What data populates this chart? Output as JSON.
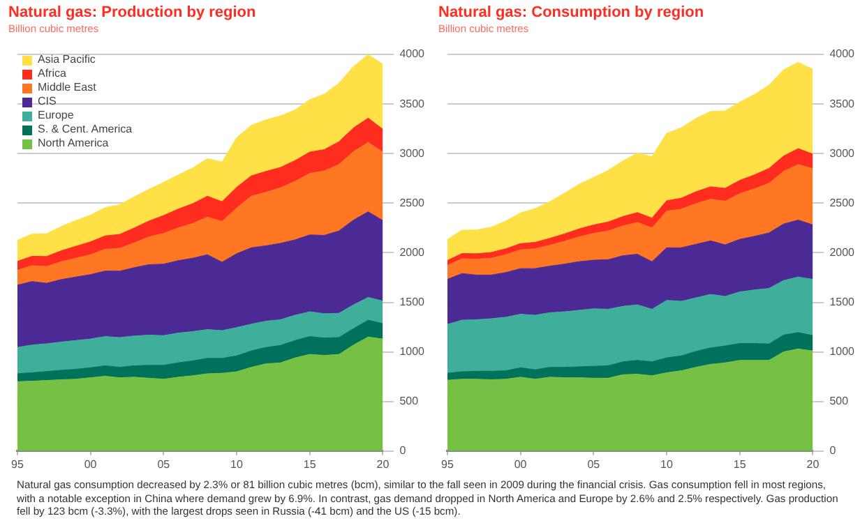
{
  "chart_data": [
    {
      "type": "area",
      "title": "Natural gas: Production by region",
      "subtitle": "Billion cubic metres",
      "stacked": true,
      "legend": "top left",
      "grid": "y",
      "x": [
        1995,
        1996,
        1997,
        1998,
        1999,
        2000,
        2001,
        2002,
        2003,
        2004,
        2005,
        2006,
        2007,
        2008,
        2009,
        2010,
        2011,
        2012,
        2013,
        2014,
        2015,
        2016,
        2017,
        2018,
        2019,
        2020
      ],
      "xlim": [
        1995,
        2020
      ],
      "xticks": [
        {
          "value": 1995,
          "label": "95"
        },
        {
          "value": 2000,
          "label": "00"
        },
        {
          "value": 2005,
          "label": "05"
        },
        {
          "value": 2010,
          "label": "10"
        },
        {
          "value": 2015,
          "label": "15"
        },
        {
          "value": 2020,
          "label": "20"
        }
      ],
      "ylim": [
        0,
        4000
      ],
      "yticks": [
        0,
        500,
        1000,
        1500,
        2000,
        2500,
        3000,
        3500,
        4000
      ],
      "annotations": [
        "Natural gas consumption decreased by 2.3% or 81 billion cubic metres (bcm), similar to the fall seen in 2009 during the financial crisis. Gas consumption fell in most regions, with a notable exception in China where demand grew by 6.9%. In contrast, gas demand dropped in North America and Europe by 2.6% and 2.5% respectively. Gas production fell by 123 bcm (-3.3%), with the largest drops seen in Russia (-41 bcm) and the US (-15 bcm)."
      ],
      "series": [
        {
          "name": "North America",
          "color": "#76c043",
          "values": [
            700,
            705,
            712,
            720,
            725,
            740,
            755,
            740,
            745,
            735,
            725,
            745,
            760,
            780,
            785,
            800,
            845,
            880,
            890,
            940,
            975,
            965,
            975,
            1070,
            1150,
            1130
          ]
        },
        {
          "name": "S. & Cent. America",
          "color": "#00715a",
          "values": [
            80,
            85,
            90,
            95,
            100,
            100,
            105,
            105,
            115,
            130,
            140,
            145,
            150,
            155,
            150,
            160,
            165,
            165,
            175,
            175,
            180,
            175,
            170,
            165,
            170,
            155
          ]
        },
        {
          "name": "Europe",
          "color": "#3fae9a",
          "values": [
            265,
            280,
            280,
            285,
            290,
            290,
            295,
            300,
            300,
            305,
            300,
            300,
            295,
            290,
            280,
            285,
            270,
            265,
            260,
            255,
            250,
            245,
            245,
            240,
            230,
            228
          ]
        },
        {
          "name": "CIS",
          "color": "#4b2a96",
          "values": [
            628,
            640,
            610,
            630,
            640,
            650,
            660,
            670,
            690,
            710,
            720,
            730,
            740,
            755,
            690,
            745,
            770,
            760,
            770,
            760,
            775,
            790,
            830,
            855,
            863,
            812
          ]
        },
        {
          "name": "Middle East",
          "color": "#ff7722",
          "values": [
            150,
            160,
            170,
            180,
            190,
            200,
            220,
            230,
            250,
            280,
            310,
            330,
            350,
            380,
            410,
            460,
            520,
            540,
            560,
            590,
            620,
            650,
            670,
            690,
            700,
            690
          ]
        },
        {
          "name": "Africa",
          "color": "#ff2d20",
          "values": [
            90,
            95,
            100,
            110,
            120,
            130,
            135,
            140,
            150,
            160,
            180,
            190,
            200,
            210,
            200,
            210,
            205,
            210,
            205,
            210,
            215,
            215,
            230,
            240,
            245,
            230
          ]
        },
        {
          "name": "Asia Pacific",
          "color": "#ffe047",
          "values": [
            212,
            225,
            230,
            245,
            260,
            270,
            285,
            300,
            315,
            320,
            335,
            345,
            360,
            380,
            400,
            500,
            510,
            520,
            520,
            510,
            530,
            560,
            590,
            620,
            640,
            656
          ]
        }
      ]
    },
    {
      "type": "area",
      "title": "Natural gas: Consumption by region",
      "subtitle": "Billion cubic metres",
      "stacked": true,
      "grid": "y",
      "x": [
        1995,
        1996,
        1997,
        1998,
        1999,
        2000,
        2001,
        2002,
        2003,
        2004,
        2005,
        2006,
        2007,
        2008,
        2009,
        2010,
        2011,
        2012,
        2013,
        2014,
        2015,
        2016,
        2017,
        2018,
        2019,
        2020
      ],
      "xlim": [
        1995,
        2020
      ],
      "xticks": [
        {
          "value": 1995,
          "label": "95"
        },
        {
          "value": 2000,
          "label": "00"
        },
        {
          "value": 2005,
          "label": "05"
        },
        {
          "value": 2010,
          "label": "10"
        },
        {
          "value": 2015,
          "label": "15"
        },
        {
          "value": 2020,
          "label": "20"
        }
      ],
      "ylim": [
        0,
        4000
      ],
      "yticks": [
        0,
        500,
        1000,
        1500,
        2000,
        2500,
        3000,
        3500,
        4000
      ],
      "series": [
        {
          "color": "#76c043",
          "values": [
            715,
            725,
            725,
            720,
            725,
            745,
            725,
            745,
            740,
            740,
            735,
            735,
            770,
            775,
            760,
            790,
            810,
            845,
            875,
            890,
            915,
            915,
            915,
            1000,
            1030,
            1010
          ]
        },
        {
          "color": "#00715a",
          "values": [
            70,
            75,
            80,
            85,
            85,
            95,
            95,
            100,
            105,
            110,
            120,
            125,
            130,
            140,
            140,
            150,
            150,
            160,
            165,
            170,
            170,
            170,
            165,
            170,
            165,
            155
          ]
        },
        {
          "color": "#3fae9a",
          "values": [
            492,
            520,
            520,
            530,
            540,
            540,
            550,
            550,
            560,
            570,
            580,
            570,
            560,
            560,
            530,
            580,
            550,
            540,
            540,
            500,
            520,
            540,
            560,
            550,
            560,
            567
          ]
        },
        {
          "color": "#4b2a96",
          "values": [
            455,
            470,
            450,
            440,
            450,
            460,
            470,
            470,
            480,
            490,
            490,
            500,
            510,
            510,
            480,
            530,
            540,
            540,
            540,
            520,
            530,
            540,
            560,
            570,
            575,
            549
          ]
        },
        {
          "color": "#ff7722",
          "values": [
            140,
            150,
            160,
            170,
            180,
            190,
            200,
            210,
            230,
            250,
            270,
            290,
            300,
            320,
            340,
            370,
            390,
            410,
            420,
            440,
            460,
            480,
            500,
            530,
            560,
            566
          ]
        },
        {
          "color": "#ff2d20",
          "values": [
            50,
            52,
            55,
            58,
            60,
            62,
            65,
            70,
            75,
            80,
            85,
            90,
            95,
            100,
            100,
            105,
            110,
            120,
            125,
            130,
            135,
            140,
            150,
            155,
            160,
            148
          ]
        },
        {
          "color": "#ffe047",
          "values": [
            212,
            235,
            240,
            255,
            280,
            310,
            340,
            370,
            410,
            450,
            480,
            520,
            560,
            600,
            620,
            680,
            710,
            740,
            760,
            780,
            790,
            810,
            840,
            870,
            870,
            856
          ]
        }
      ]
    }
  ]
}
